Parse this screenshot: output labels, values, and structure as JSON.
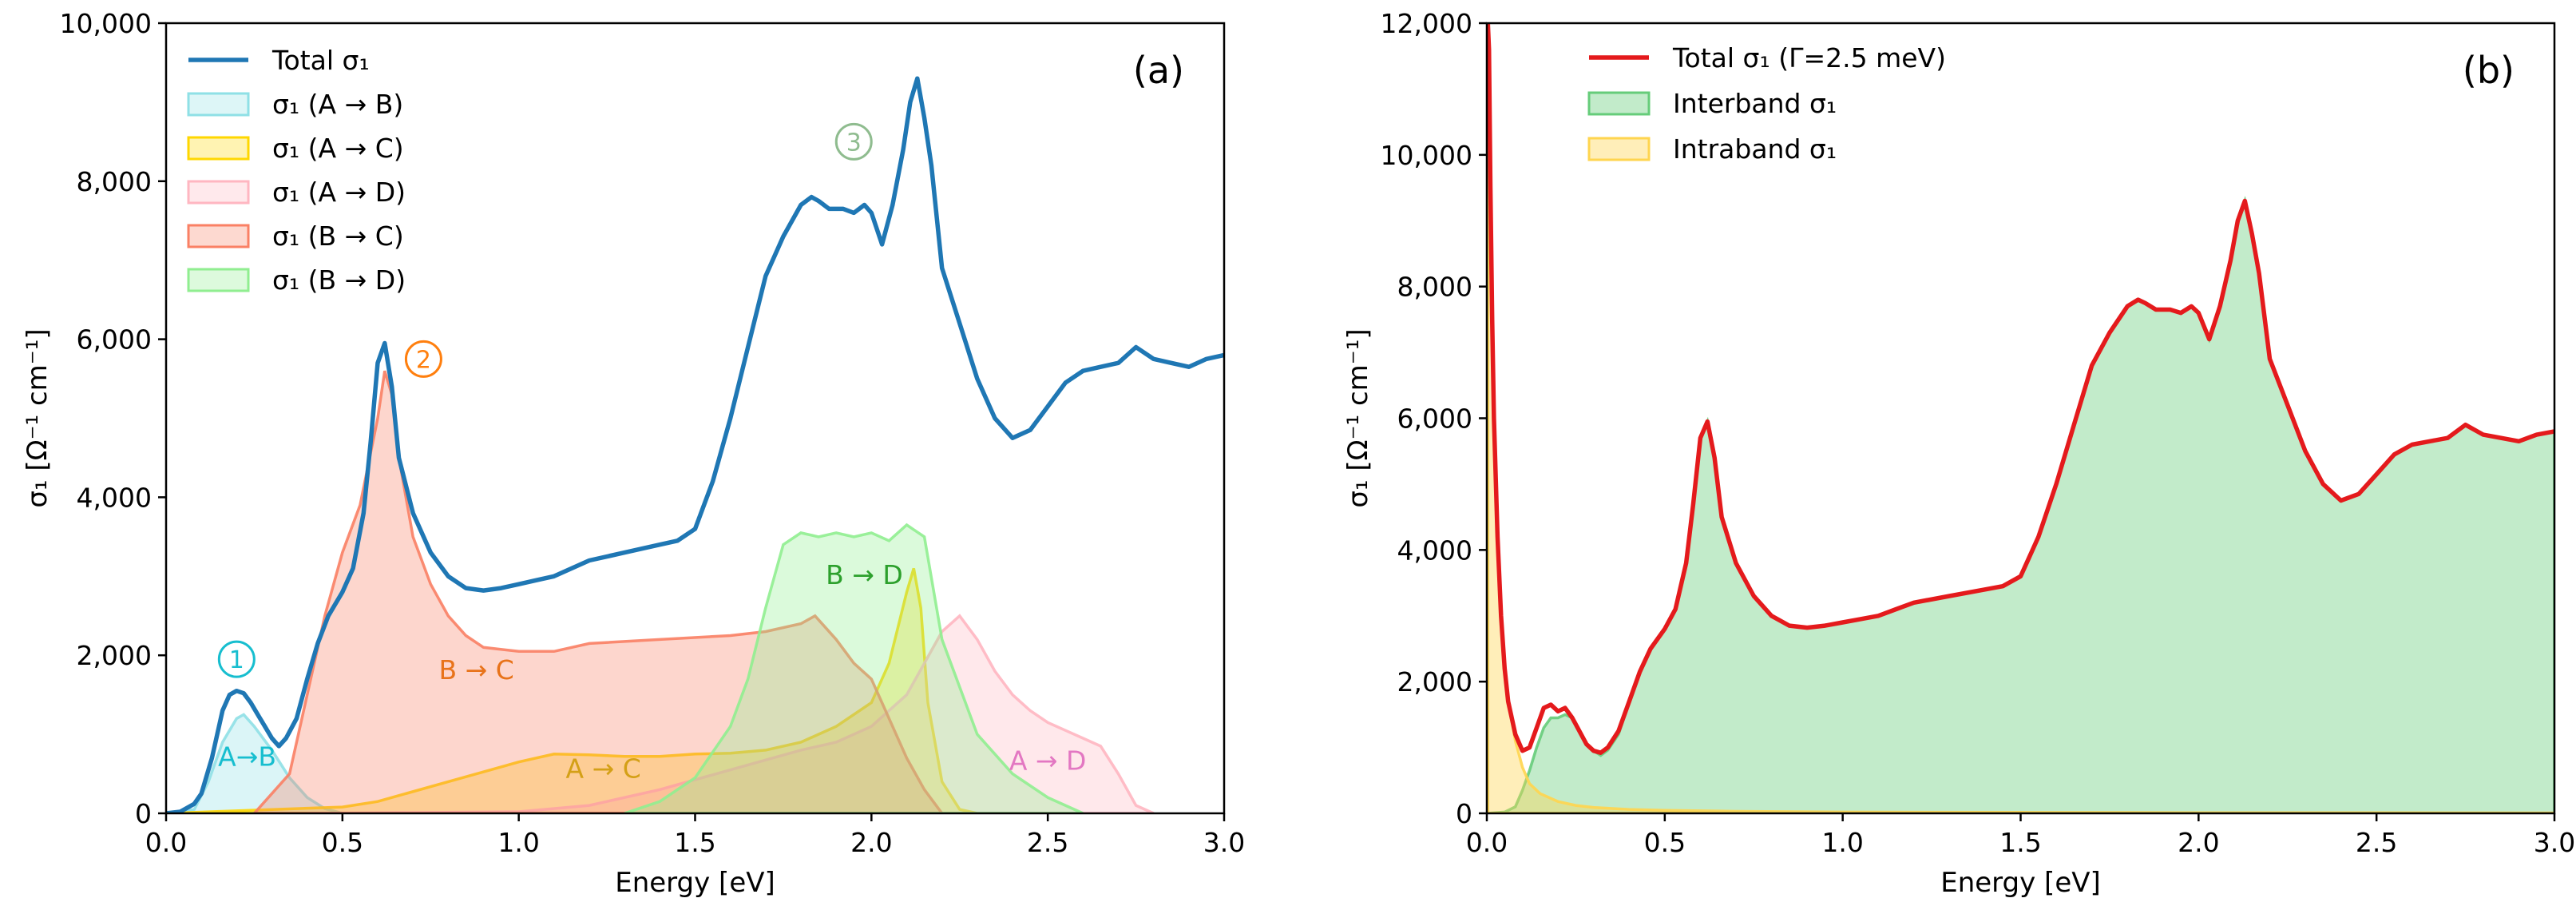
{
  "chart_data": [
    {
      "type": "area",
      "panel_label": "(a)",
      "xlabel": "Energy [eV]",
      "ylabel": "σ₁ [Ω⁻¹ cm⁻¹]",
      "xlim": [
        0,
        3.0
      ],
      "ylim": [
        0,
        10000
      ],
      "xticks": [
        "0.0",
        "0.5",
        "1.0",
        "1.5",
        "2.0",
        "2.5",
        "3.0"
      ],
      "yticks": [
        "0",
        "2,000",
        "4,000",
        "6,000",
        "8,000",
        "10,000"
      ],
      "legend_position": "top-left",
      "legend": [
        "Total σ₁",
        "σ₁ (A → B)",
        "σ₁ (A → C)",
        "σ₁ (A → D)",
        "σ₁ (B → C)",
        "σ₁ (B → D)"
      ],
      "series": [
        {
          "name": "Total σ₁",
          "style": "line",
          "color": "#1f77b4",
          "x": [
            0.0,
            0.04,
            0.08,
            0.1,
            0.13,
            0.16,
            0.18,
            0.2,
            0.22,
            0.24,
            0.26,
            0.28,
            0.3,
            0.32,
            0.34,
            0.37,
            0.4,
            0.43,
            0.46,
            0.5,
            0.53,
            0.56,
            0.58,
            0.6,
            0.62,
            0.64,
            0.66,
            0.7,
            0.75,
            0.8,
            0.85,
            0.9,
            0.95,
            1.0,
            1.05,
            1.1,
            1.15,
            1.2,
            1.3,
            1.4,
            1.45,
            1.5,
            1.55,
            1.6,
            1.65,
            1.7,
            1.75,
            1.8,
            1.83,
            1.85,
            1.88,
            1.92,
            1.95,
            1.98,
            2.0,
            2.03,
            2.06,
            2.09,
            2.11,
            2.13,
            2.15,
            2.17,
            2.2,
            2.25,
            2.3,
            2.35,
            2.4,
            2.45,
            2.5,
            2.55,
            2.6,
            2.65,
            2.7,
            2.75,
            2.8,
            2.85,
            2.9,
            2.95,
            3.0
          ],
          "values": [
            0,
            20,
            120,
            250,
            700,
            1300,
            1500,
            1550,
            1520,
            1400,
            1250,
            1100,
            950,
            850,
            950,
            1200,
            1700,
            2150,
            2500,
            2800,
            3100,
            3800,
            4700,
            5700,
            5950,
            5400,
            4500,
            3800,
            3300,
            3000,
            2850,
            2820,
            2850,
            2900,
            2950,
            3000,
            3100,
            3200,
            3300,
            3400,
            3450,
            3600,
            4200,
            5000,
            5900,
            6800,
            7300,
            7700,
            7800,
            7750,
            7650,
            7650,
            7600,
            7700,
            7600,
            7200,
            7700,
            8400,
            9000,
            9300,
            8800,
            8200,
            6900,
            6200,
            5500,
            5000,
            4750,
            4850,
            5150,
            5450,
            5600,
            5650,
            5700,
            5900,
            5750,
            5700,
            5650,
            5750,
            5800
          ]
        },
        {
          "name": "σ₁ (A → B)",
          "style": "area",
          "color": "#8fe0e6",
          "x": [
            0.0,
            0.08,
            0.12,
            0.16,
            0.2,
            0.22,
            0.25,
            0.3,
            0.35,
            0.4,
            0.45,
            0.5
          ],
          "values": [
            0,
            50,
            400,
            900,
            1200,
            1250,
            1100,
            800,
            450,
            200,
            60,
            0
          ]
        },
        {
          "name": "σ₁ (A → C)",
          "style": "area",
          "color": "#ffd700",
          "x": [
            0.0,
            0.5,
            0.6,
            0.8,
            1.0,
            1.1,
            1.2,
            1.3,
            1.4,
            1.5,
            1.6,
            1.7,
            1.8,
            1.9,
            2.0,
            2.05,
            2.1,
            2.12,
            2.14,
            2.16,
            2.2,
            2.25,
            2.3
          ],
          "values": [
            0,
            80,
            150,
            400,
            650,
            750,
            740,
            720,
            720,
            750,
            760,
            800,
            900,
            1100,
            1400,
            1900,
            2800,
            3100,
            2600,
            1400,
            400,
            50,
            0
          ]
        },
        {
          "name": "σ₁ (A → D)",
          "style": "area",
          "color": "#ffb6c1",
          "x": [
            0.4,
            1.0,
            1.2,
            1.4,
            1.6,
            1.8,
            1.9,
            2.0,
            2.1,
            2.15,
            2.2,
            2.25,
            2.3,
            2.35,
            2.4,
            2.45,
            2.5,
            2.55,
            2.6,
            2.65,
            2.7,
            2.75,
            2.8
          ],
          "values": [
            0,
            20,
            100,
            300,
            550,
            800,
            900,
            1100,
            1500,
            1900,
            2300,
            2500,
            2200,
            1800,
            1500,
            1300,
            1150,
            1050,
            950,
            850,
            500,
            100,
            0
          ]
        },
        {
          "name": "σ₁ (B → C)",
          "style": "area",
          "color": "#fa8064",
          "x": [
            0.25,
            0.35,
            0.4,
            0.45,
            0.5,
            0.55,
            0.6,
            0.62,
            0.64,
            0.66,
            0.7,
            0.75,
            0.8,
            0.85,
            0.9,
            1.0,
            1.1,
            1.2,
            1.4,
            1.6,
            1.7,
            1.8,
            1.84,
            1.9,
            1.95,
            2.0,
            2.05,
            2.1,
            2.15,
            2.2
          ],
          "values": [
            0,
            500,
            1500,
            2500,
            3300,
            3900,
            5000,
            5600,
            5300,
            4500,
            3500,
            2900,
            2500,
            2250,
            2100,
            2050,
            2050,
            2150,
            2200,
            2250,
            2300,
            2400,
            2500,
            2200,
            1900,
            1700,
            1200,
            700,
            300,
            0
          ]
        },
        {
          "name": "σ₁ (B → D)",
          "style": "area",
          "color": "#90ee90",
          "x": [
            1.3,
            1.4,
            1.5,
            1.6,
            1.65,
            1.7,
            1.75,
            1.8,
            1.85,
            1.9,
            1.95,
            2.0,
            2.05,
            2.1,
            2.15,
            2.2,
            2.3,
            2.4,
            2.5,
            2.55,
            2.6
          ],
          "values": [
            0,
            150,
            450,
            1100,
            1700,
            2600,
            3400,
            3550,
            3500,
            3550,
            3500,
            3550,
            3450,
            3650,
            3500,
            2200,
            1000,
            500,
            200,
            100,
            0
          ]
        }
      ],
      "annotations": [
        {
          "text": "A→B",
          "color": "#17becf",
          "x": 0.23,
          "y": 600
        },
        {
          "text": "B → C",
          "color": "#e8731a",
          "x": 0.88,
          "y": 1700
        },
        {
          "text": "A → C",
          "color": "#d4a017",
          "x": 1.24,
          "y": 450
        },
        {
          "text": "B → D",
          "color": "#2ca02c",
          "x": 1.98,
          "y": 2900
        },
        {
          "text": "A → D",
          "color": "#e377c2",
          "x": 2.5,
          "y": 550
        }
      ],
      "circled_labels": [
        {
          "text": "1",
          "color": "#17becf",
          "x": 0.2,
          "y": 1950
        },
        {
          "text": "2",
          "color": "#ff7f0e",
          "x": 0.73,
          "y": 5750
        },
        {
          "text": "3",
          "color": "#8fbc8f",
          "x": 1.95,
          "y": 8500
        }
      ]
    },
    {
      "type": "area",
      "panel_label": "(b)",
      "xlabel": "Energy [eV]",
      "ylabel": "σ₁ [Ω⁻¹ cm⁻¹]",
      "xlim": [
        0,
        3.0
      ],
      "ylim": [
        0,
        12000
      ],
      "xticks": [
        "0.0",
        "0.5",
        "1.0",
        "1.5",
        "2.0",
        "2.5",
        "3.0"
      ],
      "yticks": [
        "0",
        "2,000",
        "4,000",
        "6,000",
        "8,000",
        "10,000",
        "12,000"
      ],
      "legend_position": "top-left",
      "legend": [
        "Total σ₁ (Γ=2.5 meV)",
        "Interband σ₁",
        "Intraband σ₁"
      ],
      "series": [
        {
          "name": "Total σ₁ (Γ=2.5 meV)",
          "style": "line",
          "color": "#e41a1c",
          "x": [
            0.003,
            0.006,
            0.01,
            0.015,
            0.02,
            0.03,
            0.04,
            0.05,
            0.06,
            0.08,
            0.1,
            0.12,
            0.14,
            0.16,
            0.18,
            0.2,
            0.22,
            0.24,
            0.26,
            0.28,
            0.3,
            0.32,
            0.34,
            0.37,
            0.4,
            0.43,
            0.46,
            0.5,
            0.53,
            0.56,
            0.58,
            0.6,
            0.62,
            0.64,
            0.66,
            0.7,
            0.75,
            0.8,
            0.85,
            0.9,
            0.95,
            1.0,
            1.05,
            1.1,
            1.15,
            1.2,
            1.3,
            1.4,
            1.45,
            1.5,
            1.55,
            1.6,
            1.65,
            1.7,
            1.75,
            1.8,
            1.83,
            1.85,
            1.88,
            1.92,
            1.95,
            1.98,
            2.0,
            2.03,
            2.06,
            2.09,
            2.11,
            2.13,
            2.15,
            2.17,
            2.2,
            2.25,
            2.3,
            2.35,
            2.4,
            2.45,
            2.5,
            2.55,
            2.6,
            2.65,
            2.7,
            2.75,
            2.8,
            2.85,
            2.9,
            2.95,
            3.0
          ],
          "values": [
            12000,
            11600,
            9500,
            7500,
            6000,
            4200,
            3000,
            2200,
            1700,
            1200,
            950,
            1000,
            1300,
            1600,
            1650,
            1550,
            1600,
            1450,
            1250,
            1050,
            950,
            920,
            1000,
            1250,
            1700,
            2150,
            2500,
            2800,
            3100,
            3800,
            4700,
            5700,
            5950,
            5400,
            4500,
            3800,
            3300,
            3000,
            2850,
            2820,
            2850,
            2900,
            2950,
            3000,
            3100,
            3200,
            3300,
            3400,
            3450,
            3600,
            4200,
            5000,
            5900,
            6800,
            7300,
            7700,
            7800,
            7750,
            7650,
            7650,
            7600,
            7700,
            7600,
            7200,
            7700,
            8400,
            9000,
            9300,
            8800,
            8200,
            6900,
            6200,
            5500,
            5000,
            4750,
            4850,
            5150,
            5450,
            5600,
            5650,
            5700,
            5900,
            5750,
            5700,
            5650,
            5750,
            5800
          ]
        },
        {
          "name": "Interband σ₁",
          "style": "area",
          "color": "#66cc7a",
          "x": [
            0.0,
            0.05,
            0.08,
            0.1,
            0.12,
            0.14,
            0.16,
            0.18,
            0.2,
            0.22,
            0.24,
            0.26,
            0.28,
            0.3,
            0.32,
            0.34,
            0.37,
            0.4,
            0.43,
            0.46,
            0.5,
            0.53,
            0.56,
            0.58,
            0.6,
            0.62,
            0.64,
            0.66,
            0.7,
            0.75,
            0.8,
            0.85,
            0.9,
            0.95,
            1.0,
            1.05,
            1.1,
            1.15,
            1.2,
            1.3,
            1.4,
            1.45,
            1.5,
            1.55,
            1.6,
            1.65,
            1.7,
            1.75,
            1.8,
            1.83,
            1.85,
            1.88,
            1.92,
            1.95,
            1.98,
            2.0,
            2.03,
            2.06,
            2.09,
            2.11,
            2.13,
            2.15,
            2.17,
            2.2,
            2.25,
            2.3,
            2.35,
            2.4,
            2.45,
            2.5,
            2.55,
            2.6,
            2.65,
            2.7,
            2.75,
            2.8,
            2.85,
            2.9,
            2.95,
            3.0
          ],
          "values": [
            0,
            20,
            100,
            350,
            650,
            1000,
            1300,
            1450,
            1450,
            1500,
            1450,
            1250,
            1050,
            950,
            880,
            960,
            1200,
            1700,
            2150,
            2500,
            2800,
            3100,
            3800,
            4700,
            5700,
            5950,
            5400,
            4500,
            3800,
            3300,
            3000,
            2850,
            2820,
            2850,
            2900,
            2950,
            3000,
            3100,
            3200,
            3300,
            3400,
            3450,
            3600,
            4200,
            5000,
            5900,
            6800,
            7300,
            7700,
            7800,
            7750,
            7650,
            7650,
            7600,
            7700,
            7600,
            7200,
            7700,
            8400,
            9000,
            9300,
            8800,
            8200,
            6900,
            6200,
            5500,
            5000,
            4750,
            4850,
            5150,
            5450,
            5600,
            5650,
            5700,
            5900,
            5750,
            5700,
            5650,
            5750,
            5800
          ]
        },
        {
          "name": "Intraband σ₁",
          "style": "area",
          "color": "#ffd54f",
          "x": [
            0.003,
            0.006,
            0.01,
            0.015,
            0.02,
            0.03,
            0.04,
            0.05,
            0.06,
            0.08,
            0.1,
            0.12,
            0.15,
            0.2,
            0.25,
            0.3,
            0.4,
            0.5,
            0.7,
            1.0,
            1.5,
            2.0,
            2.5,
            3.0
          ],
          "values": [
            12000,
            11600,
            9500,
            7500,
            6000,
            4200,
            3000,
            2200,
            1700,
            1100,
            700,
            450,
            300,
            180,
            120,
            90,
            60,
            45,
            30,
            20,
            15,
            10,
            8,
            6
          ]
        }
      ]
    }
  ]
}
